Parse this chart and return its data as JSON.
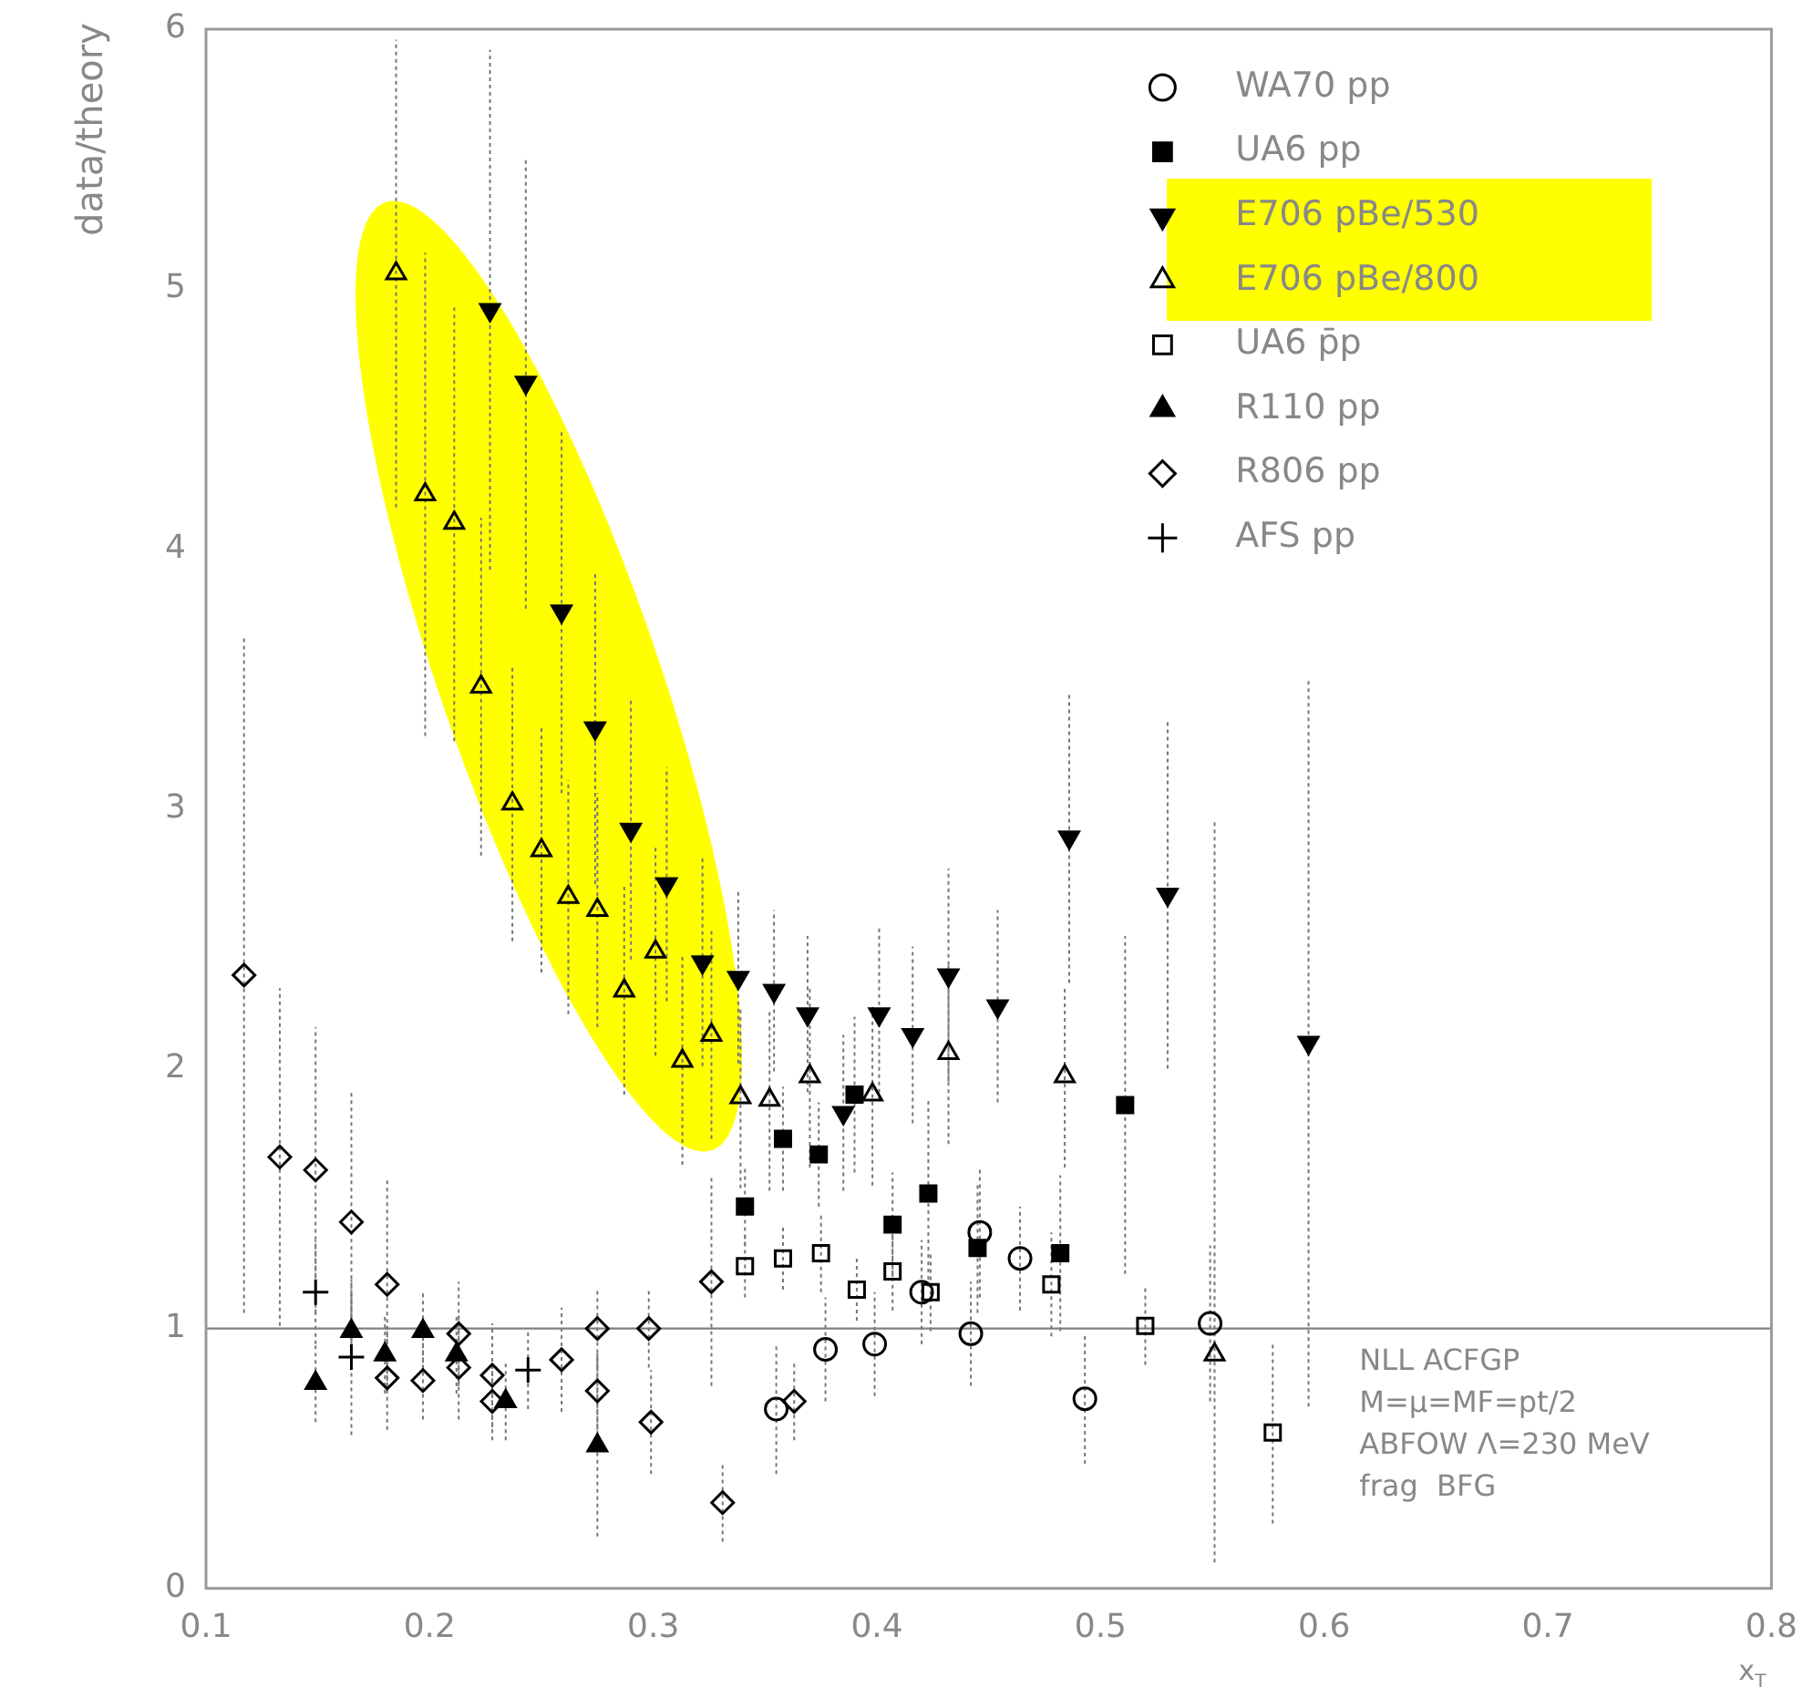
{
  "chart_data": {
    "type": "scatter",
    "xlabel": "x$_{T}$",
    "ylabel": "data/theory",
    "xlim": [
      0.1,
      0.8
    ],
    "xticks": [
      0.1,
      0.2,
      0.3,
      0.4,
      0.5,
      0.6,
      0.7,
      0.8
    ],
    "ylim": [
      0,
      6
    ],
    "yticks": [
      0,
      1,
      2,
      3,
      4,
      5,
      6
    ],
    "grid": false,
    "legend": "top right",
    "ref_lines": [
      {
        "axis": "y",
        "value": 1,
        "color": "#808080"
      }
    ],
    "annotations": [
      "NLL ACFGP",
      "M=μ=MF=pt/2",
      "ABFOW Λ=230 MeV",
      "frag  BFG"
    ],
    "series": [
      {
        "name": "WA70 pp",
        "color": "#000000",
        "marker": "circle-open",
        "x": [
          0.355,
          0.377,
          0.399,
          0.42,
          0.442,
          0.446,
          0.464,
          0.493,
          0.549
        ],
        "values": [
          0.69,
          0.92,
          0.94,
          1.14,
          0.98,
          1.37,
          1.27,
          0.73,
          1.02
        ],
        "errors": [
          0.25,
          0.2,
          0.2,
          0.2,
          0.2,
          0.25,
          0.2,
          0.25,
          0.3
        ]
      },
      {
        "name": "UA6 pp",
        "color": "#000000",
        "marker": "square",
        "x": [
          0.341,
          0.358,
          0.374,
          0.39,
          0.407,
          0.423,
          0.445,
          0.482,
          0.511
        ],
        "values": [
          1.47,
          1.73,
          1.67,
          1.9,
          1.4,
          1.52,
          1.31,
          1.29,
          1.86
        ],
        "errors": [
          0.15,
          0.2,
          0.2,
          0.3,
          0.2,
          0.36,
          0.25,
          0.3,
          0.65
        ]
      },
      {
        "name": "E706 pBe/530",
        "color": "#000000",
        "marker": "triangle-down",
        "x": [
          0.227,
          0.243,
          0.259,
          0.274,
          0.29,
          0.306,
          0.322,
          0.338,
          0.354,
          0.369,
          0.385,
          0.401,
          0.416,
          0.432,
          0.454,
          0.486,
          0.53,
          0.593
        ],
        "values": [
          4.92,
          4.64,
          3.76,
          3.31,
          2.92,
          2.71,
          2.41,
          2.35,
          2.3,
          2.21,
          1.83,
          2.21,
          2.13,
          2.36,
          2.24,
          2.89,
          2.67,
          2.1
        ],
        "errors": [
          1.0,
          0.87,
          0.7,
          0.6,
          0.5,
          0.45,
          0.4,
          0.33,
          0.31,
          0.3,
          0.3,
          0.33,
          0.34,
          0.41,
          0.37,
          0.56,
          0.67,
          1.4
        ]
      },
      {
        "name": "E706 pBe/800",
        "color": "#000000",
        "marker": "triangle-open",
        "x": [
          0.185,
          0.198,
          0.211,
          0.223,
          0.237,
          0.25,
          0.262,
          0.275,
          0.287,
          0.301,
          0.313,
          0.326,
          0.339,
          0.352,
          0.37,
          0.398,
          0.432,
          0.484,
          0.551
        ],
        "values": [
          5.06,
          4.21,
          4.1,
          3.47,
          3.02,
          2.84,
          2.66,
          2.61,
          2.3,
          2.45,
          2.03,
          2.13,
          1.89,
          1.88,
          1.97,
          1.9,
          2.06,
          1.97,
          0.9
        ],
        "errors": [
          0.9,
          0.93,
          0.84,
          0.65,
          0.53,
          0.47,
          0.45,
          0.45,
          0.4,
          0.4,
          0.4,
          0.4,
          0.35,
          0.35,
          0.35,
          0.35,
          0.35,
          0.35,
          [
            0.1,
            2.95
          ]
        ]
      },
      {
        "name": "UA6 p̄p",
        "color": "#000000",
        "marker": "square-open",
        "x": [
          0.341,
          0.358,
          0.375,
          0.391,
          0.407,
          0.424,
          0.478,
          0.52,
          0.577
        ],
        "values": [
          1.24,
          1.27,
          1.29,
          1.15,
          1.22,
          1.14,
          1.17,
          1.01,
          0.6
        ],
        "errors": [
          0.12,
          0.12,
          0.15,
          0.12,
          0.15,
          0.15,
          0.2,
          0.15,
          0.35
        ]
      },
      {
        "name": "R110 pp",
        "color": "#000000",
        "marker": "triangle",
        "x": [
          0.149,
          0.165,
          0.18,
          0.197,
          0.212,
          0.234,
          0.275
        ],
        "values": [
          0.79,
          0.99,
          0.9,
          0.99,
          0.9,
          0.72,
          0.55
        ],
        "errors": [
          0.15,
          0.15,
          0.15,
          0.15,
          0.15,
          0.15,
          0.35
        ]
      },
      {
        "name": "R806 pp",
        "color": "#000000",
        "marker": "diamond-open",
        "x": [
          0.117,
          0.133,
          0.149,
          0.165,
          0.181,
          0.181,
          0.197,
          0.213,
          0.213,
          0.228,
          0.228,
          0.259,
          0.275,
          0.275,
          0.298,
          0.299,
          0.326,
          0.331,
          0.363
        ],
        "values": [
          2.36,
          1.66,
          1.61,
          1.41,
          1.17,
          0.81,
          0.8,
          0.98,
          0.85,
          0.82,
          0.72,
          0.88,
          1.0,
          0.76,
          1.0,
          0.64,
          1.18,
          0.33,
          0.72
        ],
        "errors": [
          1.3,
          0.65,
          0.55,
          0.5,
          0.4,
          0.2,
          0.15,
          0.2,
          0.2,
          0.2,
          0.15,
          0.2,
          0.15,
          0.15,
          0.15,
          0.2,
          0.4,
          0.15,
          0.15
        ]
      },
      {
        "name": "AFS pp",
        "color": "#000000",
        "marker": "cross-open",
        "x": [
          0.149,
          0.165,
          0.244
        ],
        "values": [
          1.14,
          0.89,
          0.84
        ],
        "errors": [
          0.2,
          0.3,
          0.15
        ]
      }
    ]
  }
}
